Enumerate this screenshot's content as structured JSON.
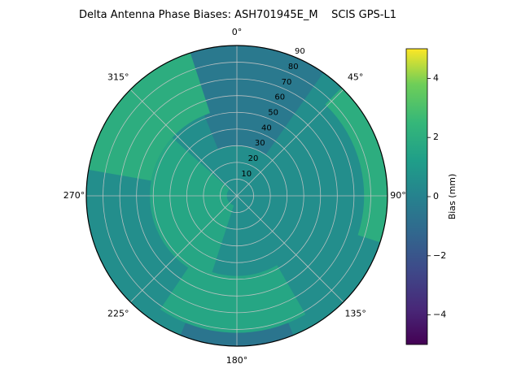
{
  "chart_data": {
    "type": "polar_contour",
    "title": "Delta Antenna Phase Biases: ASH701945E_M    SCIS GPS-L1",
    "value_range": [
      -5,
      5
    ],
    "radial_max": 90,
    "radial_axis_angle_deg": 23.5,
    "base_bias": 0.5,
    "angular_ticks": [
      {
        "deg": 0,
        "label": "0°"
      },
      {
        "deg": 45,
        "label": "45°"
      },
      {
        "deg": 90,
        "label": "90°"
      },
      {
        "deg": 135,
        "label": "135°"
      },
      {
        "deg": 180,
        "label": "180°"
      },
      {
        "deg": 225,
        "label": "225°"
      },
      {
        "deg": 270,
        "label": "270°"
      },
      {
        "deg": 315,
        "label": "315°"
      }
    ],
    "radial_ticks": [
      {
        "value": 10,
        "label": "10"
      },
      {
        "value": 20,
        "label": "20"
      },
      {
        "value": 30,
        "label": "30"
      },
      {
        "value": 40,
        "label": "40"
      },
      {
        "value": 50,
        "label": "50"
      },
      {
        "value": 60,
        "label": "60"
      },
      {
        "value": 70,
        "label": "70"
      },
      {
        "value": 80,
        "label": "80"
      },
      {
        "value": 90,
        "label": "90"
      }
    ],
    "grid": {
      "spoke_step_deg": 45,
      "ring_step": 10,
      "color": "#c6c6c6"
    },
    "colormap": {
      "name": "viridis",
      "stops": [
        [
          0.0,
          "#440154"
        ],
        [
          0.12,
          "#482878"
        ],
        [
          0.25,
          "#3e4989"
        ],
        [
          0.38,
          "#31688e"
        ],
        [
          0.5,
          "#26828e"
        ],
        [
          0.62,
          "#1f9e89"
        ],
        [
          0.75,
          "#35b779"
        ],
        [
          0.88,
          "#6ece58"
        ],
        [
          1.0,
          "#fde725"
        ]
      ]
    },
    "colorbar": {
      "label": "Bias (mm)",
      "ticks": [
        {
          "value": 4,
          "label": "4"
        },
        {
          "value": 2,
          "label": "2"
        },
        {
          "value": 0,
          "label": "0"
        },
        {
          "value": -2,
          "label": "−2"
        },
        {
          "value": -4,
          "label": "−4"
        }
      ]
    },
    "regions": [
      {
        "name": "top-dark",
        "az_start": 338,
        "az_end": 395,
        "r_inner": 30,
        "r_outer": 90,
        "bias": -0.4
      },
      {
        "name": "bottom-edge-dark",
        "az_start": 158,
        "az_end": 202,
        "r_inner": 82,
        "r_outer": 90,
        "bias": -0.6
      },
      {
        "name": "upper-left-green",
        "az_start": 280,
        "az_end": 342,
        "r_inner": 52,
        "r_outer": 90,
        "bias": 2.0
      },
      {
        "name": "right-edge-green",
        "az_start": 44,
        "az_end": 108,
        "r_inner": 76,
        "r_outer": 90,
        "bias": 2.0
      },
      {
        "name": "center-left-green",
        "az_start": 198,
        "az_end": 312,
        "r_inner": 6,
        "r_outer": 52,
        "bias": 1.6
      },
      {
        "name": "bottom-green",
        "az_start": 150,
        "az_end": 214,
        "r_inner": 48,
        "r_outer": 82,
        "bias": 1.6
      }
    ]
  }
}
